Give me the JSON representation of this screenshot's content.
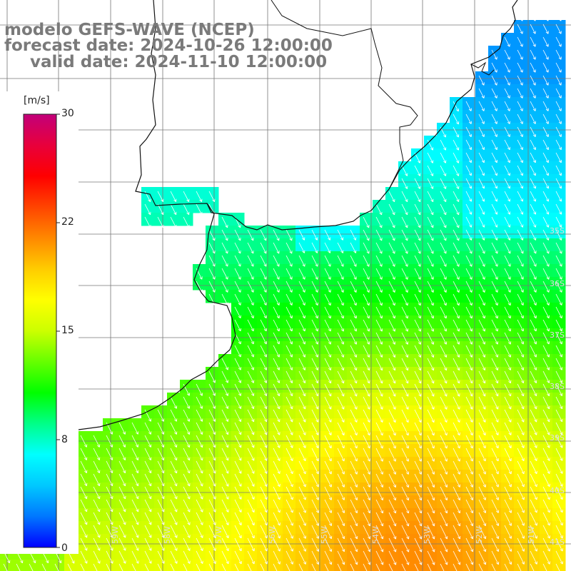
{
  "title": {
    "line1": "modelo GEFS-WAVE (NCEP)",
    "line2": "forecast date: 2024-10-26 12:00:00",
    "line3": "valid date: 2024-11-10 12:00:00"
  },
  "colorbar": {
    "units": "[m/s]",
    "ticks": [
      "30",
      "22",
      "15",
      "8",
      "0"
    ],
    "range": [
      0,
      30
    ],
    "colors": [
      "#0000ff",
      "#0077ff",
      "#00c8ff",
      "#00ffff",
      "#00ff88",
      "#00ff00",
      "#66ff00",
      "#ccff00",
      "#ffff00",
      "#ffcc00",
      "#ff8800",
      "#ff4400",
      "#ff0000",
      "#e8003c",
      "#c2007a"
    ]
  },
  "lat_labels": [
    "35S",
    "36S",
    "37S",
    "38S",
    "39S",
    "40S",
    "41S"
  ],
  "lon_labels": [
    "60W",
    "59W",
    "58W",
    "57W",
    "56W",
    "55W",
    "54W",
    "53W",
    "52W",
    "51W"
  ],
  "field": {
    "variable": "wind speed",
    "arrow_direction": "toward southeast",
    "land_color": "#ffffff",
    "grid": "on"
  }
}
